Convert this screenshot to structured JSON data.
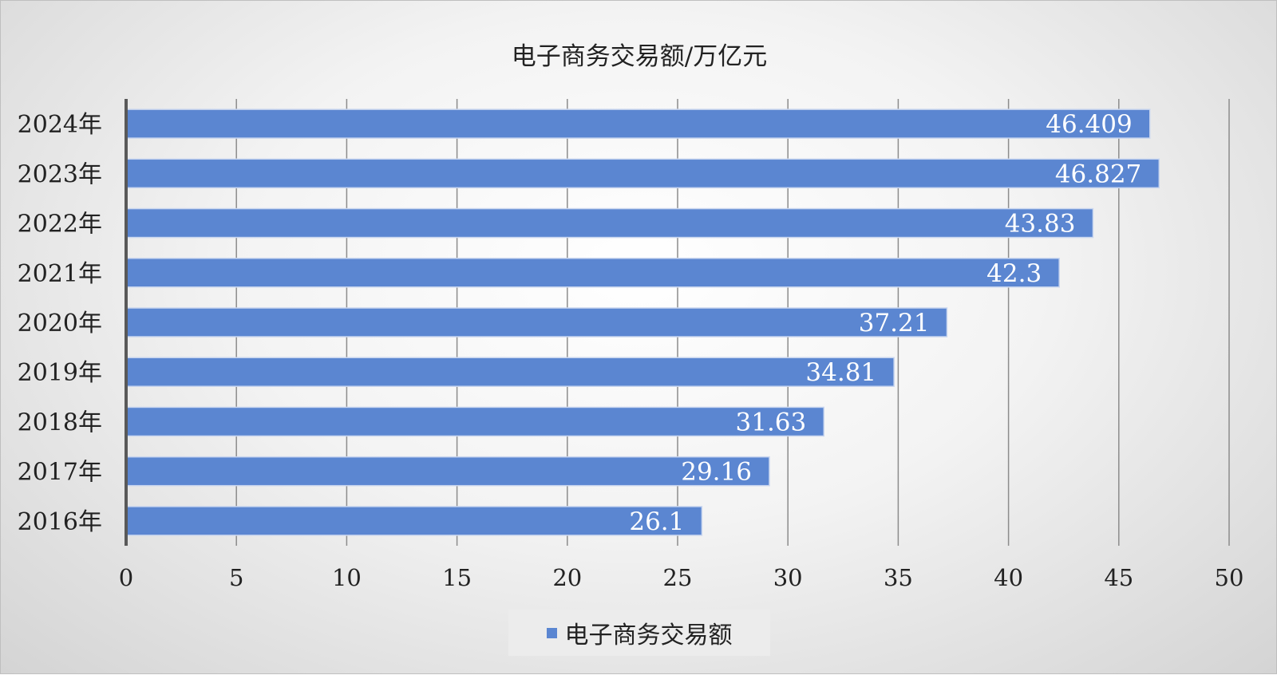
{
  "chart_data": {
    "type": "bar",
    "orientation": "horizontal",
    "title": "电子商务交易额/万亿元",
    "categories": [
      "2024年",
      "2023年",
      "2022年",
      "2021年",
      "2020年",
      "2019年",
      "2018年",
      "2017年",
      "2016年"
    ],
    "values": [
      46.409,
      46.827,
      43.83,
      42.3,
      37.21,
      34.81,
      31.63,
      29.16,
      26.1
    ],
    "value_labels": [
      "46.409",
      "46.827",
      "43.83",
      "42.3",
      "37.21",
      "34.81",
      "31.63",
      "29.16",
      "26.1"
    ],
    "series": [
      {
        "name": "电子商务交易额",
        "color": "#5b86d1"
      }
    ],
    "xlim": [
      0,
      50
    ],
    "x_ticks": [
      0,
      5,
      10,
      15,
      20,
      25,
      30,
      35,
      40,
      45,
      50
    ],
    "grid": "vertical",
    "legend_position": "bottom"
  }
}
